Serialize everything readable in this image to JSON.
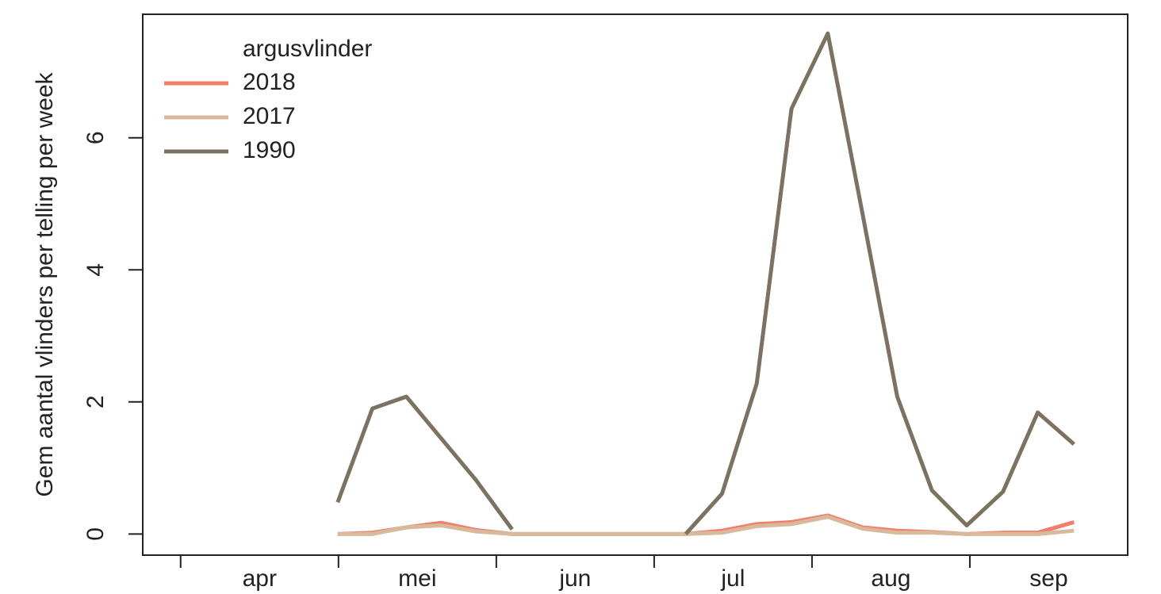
{
  "chart_data": {
    "type": "line",
    "y_label": "Gem aantal vlinders per telling per week",
    "legend_title": "argusvlinder",
    "legend": "top-left",
    "categories": [
      "apr",
      "mei",
      "jun",
      "jul",
      "aug",
      "sep"
    ],
    "x": [
      0.995,
      1.215,
      1.43,
      1.65,
      1.87,
      2.1,
      2.32,
      2.54,
      2.76,
      2.98,
      3.2,
      3.43,
      3.65,
      3.87,
      4.1,
      4.32,
      4.54,
      4.76,
      4.98,
      5.21,
      5.43,
      5.66
    ],
    "xlim": [
      -0.24,
      6.0
    ],
    "ylim": [
      -0.32,
      7.87
    ],
    "yticks": [
      0,
      2,
      4,
      6
    ],
    "series": [
      {
        "name": "2018",
        "color": "#f07f6e",
        "values": [
          0,
          0.02,
          0.1,
          0.17,
          0.06,
          0,
          0,
          0,
          0,
          0,
          0,
          0.05,
          0.15,
          0.18,
          0.28,
          0.1,
          0.05,
          0.03,
          0,
          0.02,
          0.02,
          0.18
        ]
      },
      {
        "name": "2017",
        "color": "#d9b99b",
        "values": [
          0,
          0,
          0.1,
          0.13,
          0.04,
          0,
          0,
          0,
          0,
          0,
          0,
          0.02,
          0.12,
          0.15,
          0.26,
          0.08,
          0.02,
          0.02,
          0,
          0,
          0,
          0.05
        ]
      },
      {
        "name": "1990",
        "color": "#7b7262",
        "values": [
          0.48,
          1.9,
          2.08,
          1.45,
          0.82,
          0.07,
          null,
          null,
          null,
          null,
          0,
          0.61,
          2.28,
          6.44,
          7.58,
          4.85,
          2.08,
          0.66,
          0.13,
          0.64,
          1.84,
          1.36
        ]
      }
    ]
  }
}
